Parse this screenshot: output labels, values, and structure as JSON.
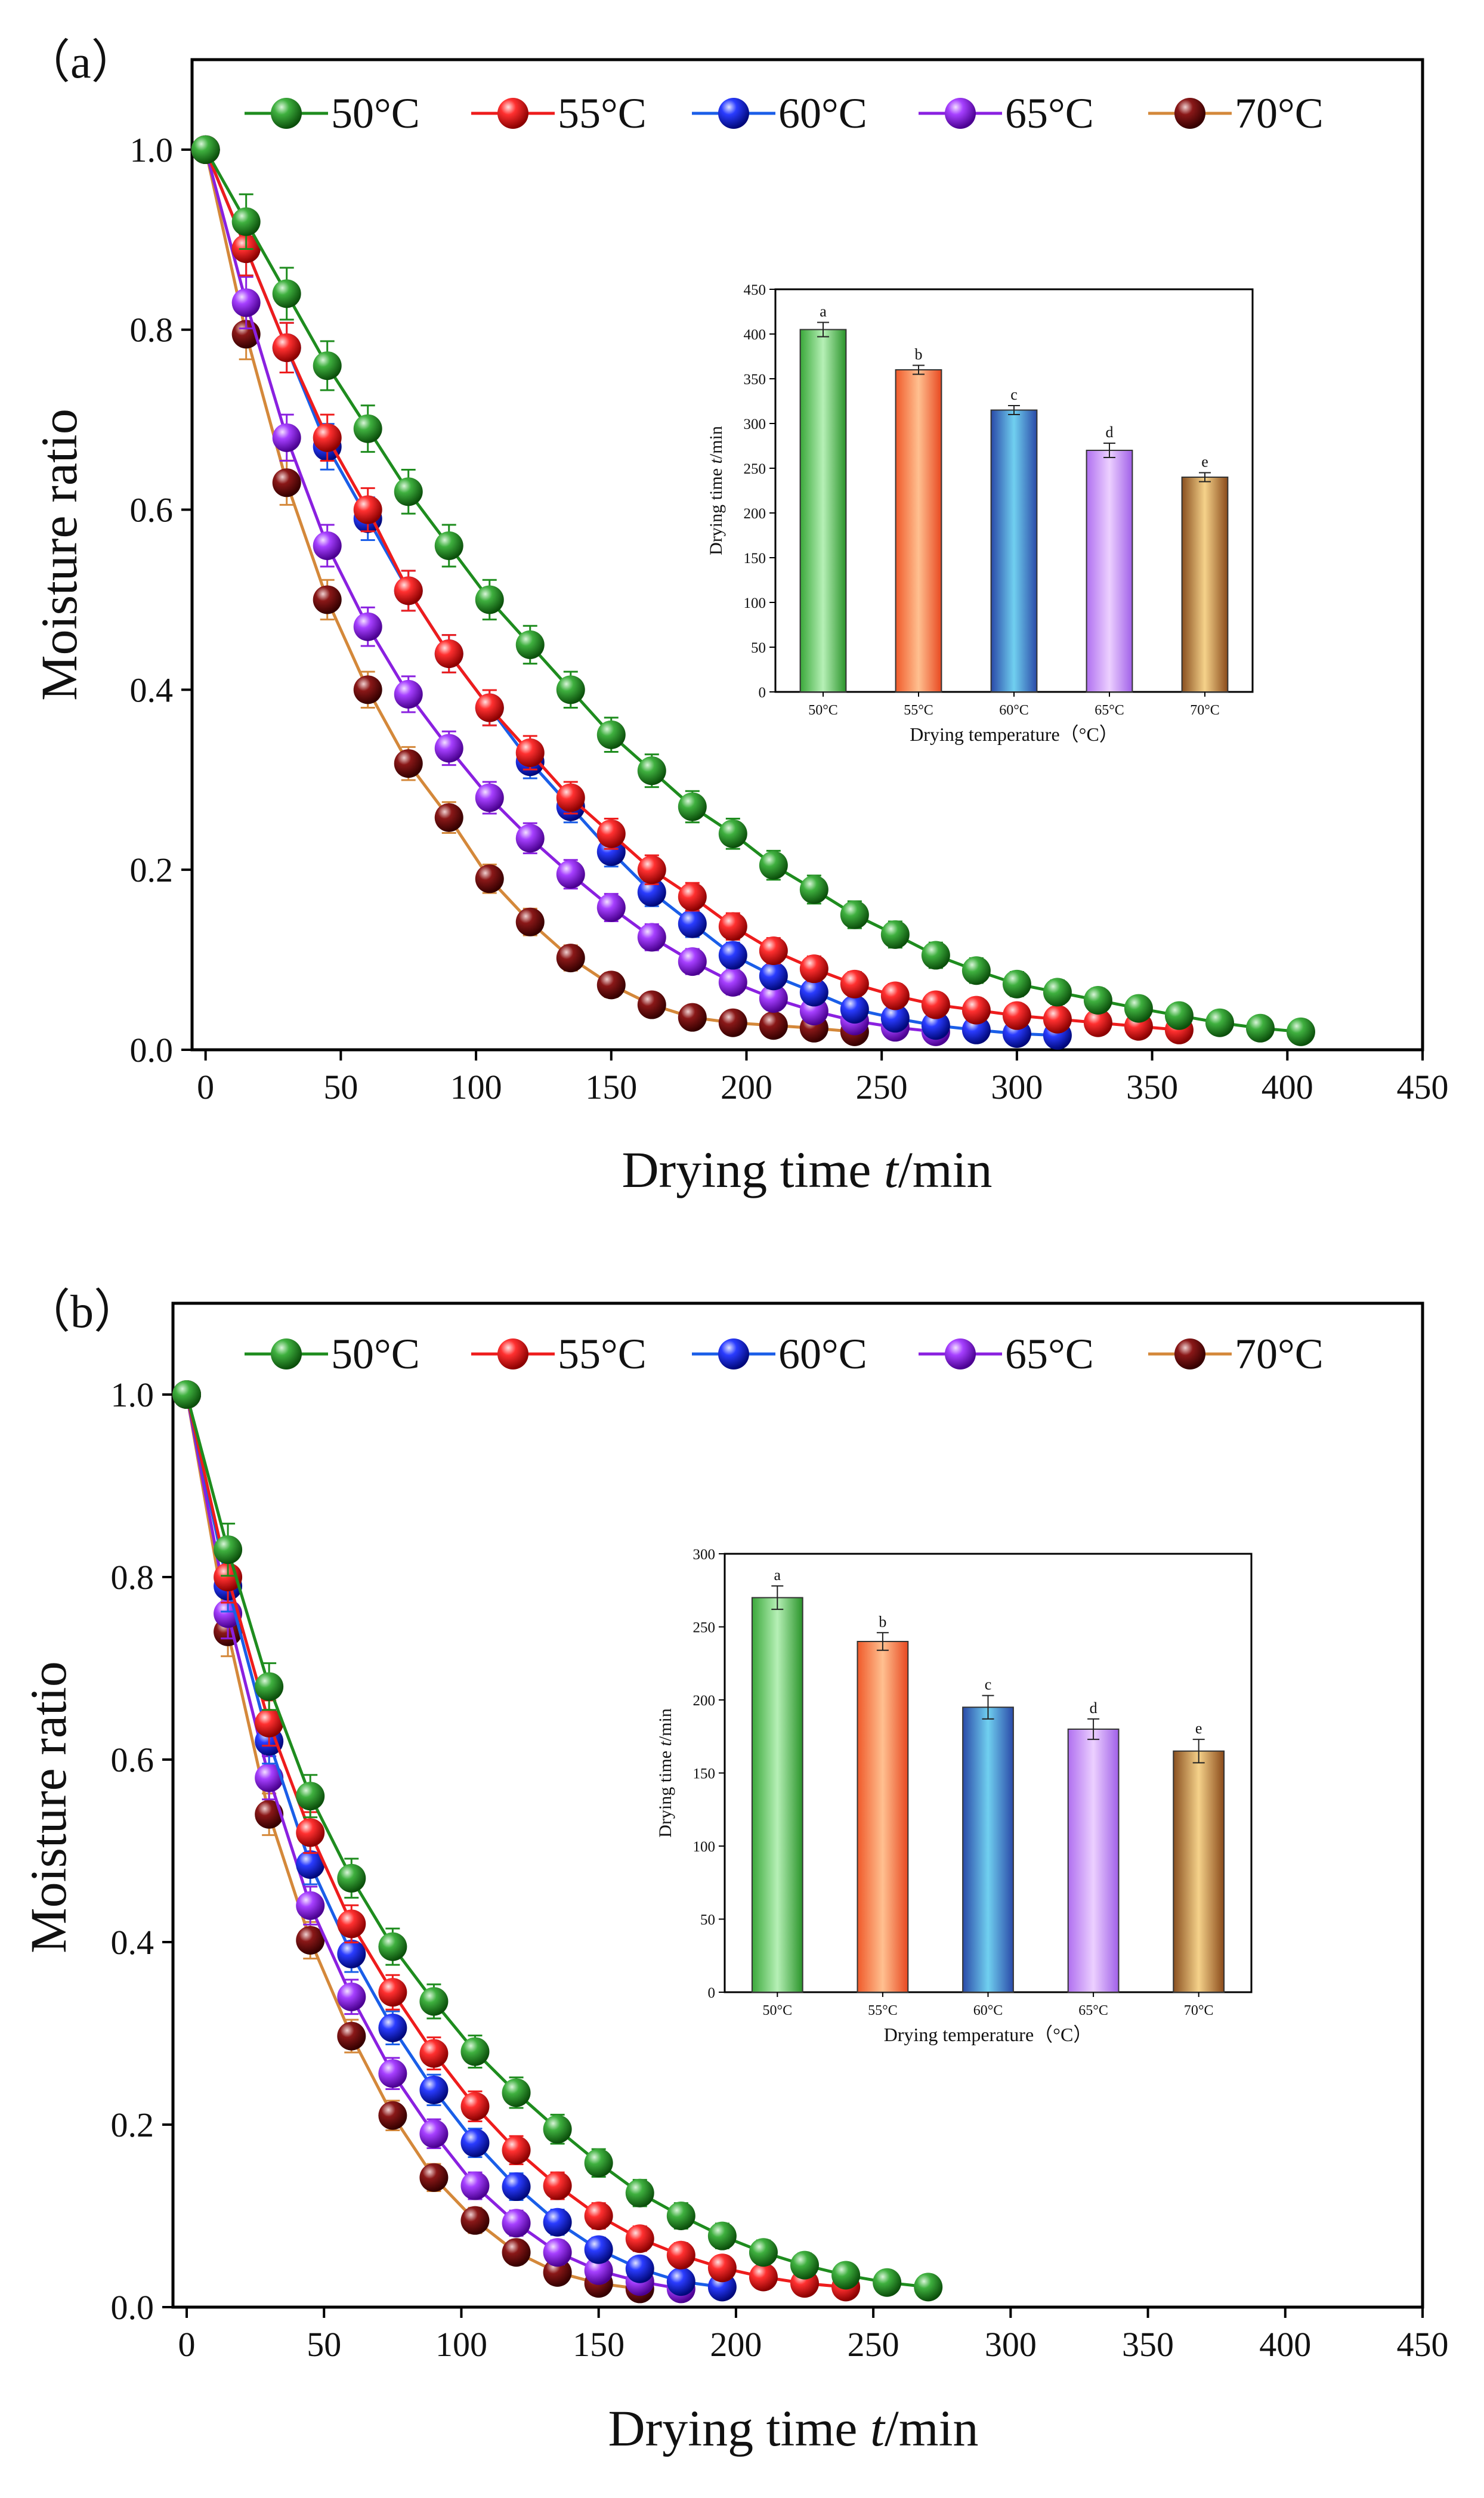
{
  "series_colors": [
    "#1e8c1e",
    "#ee1c1c",
    "#1a2ee8",
    "#9a28e6",
    "#7a1010"
  ],
  "line_colors": [
    "#1e8c1e",
    "#ee1c1c",
    "#1a5ee8",
    "#8a20e0",
    "#d4883a"
  ],
  "chart_data": [
    {
      "panel_label": "（a）",
      "type": "line",
      "xlabel_prefix": "Drying time ",
      "xlabel_var": "t",
      "xlabel_suffix": "/min",
      "ylabel": "Moisture ratio",
      "xlim": [
        -5,
        450
      ],
      "ylim": [
        0,
        1.1
      ],
      "xticks": [
        0,
        50,
        100,
        150,
        200,
        250,
        300,
        350,
        400,
        450
      ],
      "yticks": [
        0.0,
        0.2,
        0.4,
        0.6,
        0.8,
        1.0
      ],
      "legend_labels": [
        "50°C",
        "55°C",
        "60°C",
        "65°C",
        "70°C"
      ],
      "series": [
        {
          "name": "50°C",
          "x": [
            0,
            15,
            30,
            45,
            60,
            75,
            90,
            105,
            120,
            135,
            150,
            165,
            180,
            195,
            210,
            225,
            240,
            255,
            270,
            285,
            300,
            315,
            330,
            345,
            360,
            375,
            390,
            405
          ],
          "y": [
            1.0,
            0.92,
            0.84,
            0.76,
            0.69,
            0.62,
            0.56,
            0.5,
            0.45,
            0.4,
            0.35,
            0.31,
            0.27,
            0.24,
            0.205,
            0.178,
            0.15,
            0.128,
            0.105,
            0.088,
            0.073,
            0.064,
            0.055,
            0.046,
            0.038,
            0.03,
            0.024,
            0.02
          ]
        },
        {
          "name": "55°C",
          "x": [
            0,
            15,
            30,
            45,
            60,
            75,
            90,
            105,
            120,
            135,
            150,
            165,
            180,
            195,
            210,
            225,
            240,
            255,
            270,
            285,
            300,
            315,
            330,
            345,
            360
          ],
          "y": [
            1.0,
            0.89,
            0.78,
            0.68,
            0.6,
            0.51,
            0.44,
            0.38,
            0.33,
            0.28,
            0.24,
            0.2,
            0.17,
            0.137,
            0.11,
            0.09,
            0.073,
            0.06,
            0.05,
            0.044,
            0.038,
            0.034,
            0.03,
            0.026,
            0.022
          ]
        },
        {
          "name": "60°C",
          "x": [
            0,
            15,
            30,
            45,
            60,
            75,
            90,
            105,
            120,
            135,
            150,
            165,
            180,
            195,
            210,
            225,
            240,
            255,
            270,
            285,
            300,
            315
          ],
          "y": [
            1.0,
            0.89,
            0.78,
            0.67,
            0.59,
            0.51,
            0.44,
            0.38,
            0.32,
            0.27,
            0.22,
            0.175,
            0.14,
            0.105,
            0.082,
            0.064,
            0.045,
            0.035,
            0.027,
            0.022,
            0.018,
            0.016
          ]
        },
        {
          "name": "65°C",
          "x": [
            0,
            15,
            30,
            45,
            60,
            75,
            90,
            105,
            120,
            135,
            150,
            165,
            180,
            195,
            210,
            225,
            240,
            255,
            270
          ],
          "y": [
            1.0,
            0.83,
            0.68,
            0.56,
            0.47,
            0.395,
            0.335,
            0.28,
            0.235,
            0.195,
            0.158,
            0.125,
            0.098,
            0.075,
            0.057,
            0.043,
            0.032,
            0.025,
            0.02
          ]
        },
        {
          "name": "70°C",
          "x": [
            0,
            15,
            30,
            45,
            60,
            75,
            90,
            105,
            120,
            135,
            150,
            165,
            180,
            195,
            210,
            225,
            240
          ],
          "y": [
            1.0,
            0.795,
            0.63,
            0.5,
            0.4,
            0.318,
            0.258,
            0.19,
            0.142,
            0.102,
            0.072,
            0.05,
            0.036,
            0.03,
            0.027,
            0.024,
            0.02
          ]
        }
      ],
      "inset": {
        "type": "bar",
        "categories": [
          "50°C",
          "55°C",
          "60°C",
          "65°C",
          "70°C"
        ],
        "values": [
          405,
          360,
          315,
          270,
          240
        ],
        "errors": [
          8,
          5,
          5,
          8,
          5
        ],
        "letters": [
          "a",
          "b",
          "c",
          "d",
          "e"
        ],
        "ylim": [
          0,
          450
        ],
        "yticks": [
          0,
          50,
          100,
          150,
          200,
          250,
          300,
          350,
          400,
          450
        ],
        "xlabel": "Drying temperature（°C）",
        "ylabel_prefix": "Drying time ",
        "ylabel_var": "t",
        "ylabel_suffix": "/min"
      }
    },
    {
      "panel_label": "（b）",
      "type": "line",
      "xlabel_prefix": "Drying time ",
      "xlabel_var": "t",
      "xlabel_suffix": "/min",
      "ylabel": "Moisture ratio",
      "xlim": [
        -5,
        450
      ],
      "ylim": [
        0,
        1.1
      ],
      "xticks": [
        0,
        50,
        100,
        150,
        200,
        250,
        300,
        350,
        400,
        450
      ],
      "yticks": [
        0.0,
        0.2,
        0.4,
        0.6,
        0.8,
        1.0
      ],
      "legend_labels": [
        "50°C",
        "55°C",
        "60°C",
        "65°C",
        "70°C"
      ],
      "series": [
        {
          "name": "50°C",
          "x": [
            0,
            15,
            30,
            45,
            60,
            75,
            90,
            105,
            120,
            135,
            150,
            165,
            180,
            195,
            210,
            225,
            240,
            255,
            270
          ],
          "y": [
            1.0,
            0.83,
            0.68,
            0.56,
            0.47,
            0.395,
            0.335,
            0.28,
            0.235,
            0.195,
            0.158,
            0.125,
            0.1,
            0.078,
            0.06,
            0.046,
            0.035,
            0.027,
            0.022
          ]
        },
        {
          "name": "55°C",
          "x": [
            0,
            15,
            30,
            45,
            60,
            75,
            90,
            105,
            120,
            135,
            150,
            165,
            180,
            195,
            210,
            225,
            240
          ],
          "y": [
            1.0,
            0.8,
            0.64,
            0.52,
            0.42,
            0.345,
            0.278,
            0.22,
            0.172,
            0.133,
            0.1,
            0.075,
            0.057,
            0.043,
            0.033,
            0.026,
            0.022
          ]
        },
        {
          "name": "60°C",
          "x": [
            0,
            15,
            30,
            45,
            60,
            75,
            90,
            105,
            120,
            135,
            150,
            165,
            180,
            195
          ],
          "y": [
            1.0,
            0.79,
            0.62,
            0.485,
            0.387,
            0.306,
            0.238,
            0.18,
            0.132,
            0.093,
            0.063,
            0.042,
            0.028,
            0.022
          ]
        },
        {
          "name": "65°C",
          "x": [
            0,
            15,
            30,
            45,
            60,
            75,
            90,
            105,
            120,
            135,
            150,
            165,
            180
          ],
          "y": [
            1.0,
            0.76,
            0.58,
            0.44,
            0.34,
            0.256,
            0.19,
            0.133,
            0.092,
            0.06,
            0.04,
            0.028,
            0.02
          ]
        },
        {
          "name": "70°C",
          "x": [
            0,
            15,
            30,
            45,
            60,
            75,
            90,
            105,
            120,
            135,
            150,
            165
          ],
          "y": [
            1.0,
            0.74,
            0.54,
            0.402,
            0.297,
            0.21,
            0.142,
            0.095,
            0.06,
            0.038,
            0.026,
            0.02
          ]
        }
      ],
      "inset": {
        "type": "bar",
        "categories": [
          "50°C",
          "55°C",
          "60°C",
          "65°C",
          "70°C"
        ],
        "values": [
          270,
          240,
          195,
          180,
          165
        ],
        "errors": [
          8,
          6,
          8,
          7,
          8
        ],
        "letters": [
          "a",
          "b",
          "c",
          "d",
          "e"
        ],
        "ylim": [
          0,
          300
        ],
        "yticks": [
          0,
          50,
          100,
          150,
          200,
          250,
          300
        ],
        "xlabel": "Drying temperature（°C）",
        "ylabel_prefix": "Drying time ",
        "ylabel_var": "t",
        "ylabel_suffix": "/min"
      }
    }
  ]
}
